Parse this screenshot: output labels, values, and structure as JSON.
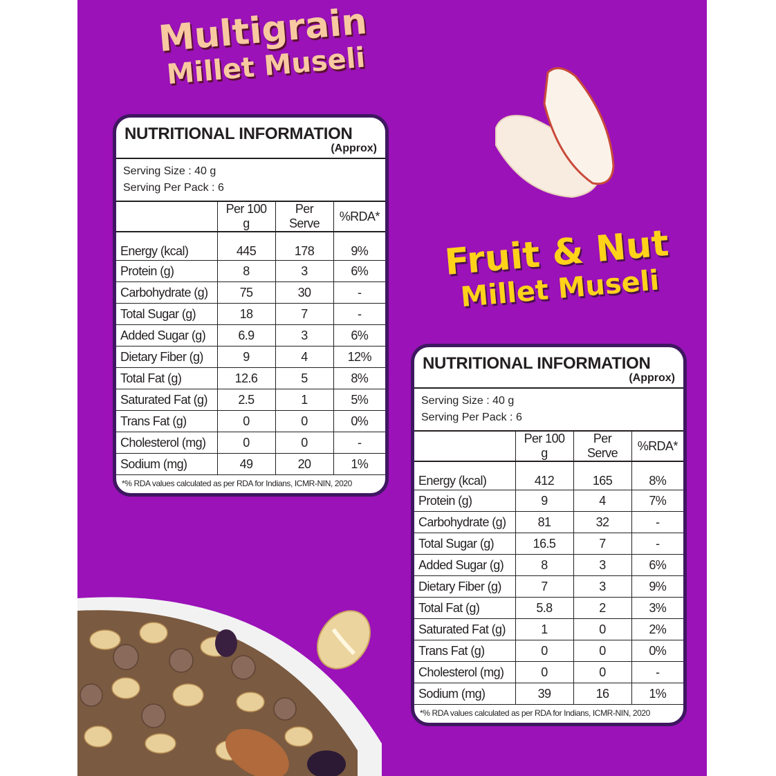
{
  "colors": {
    "background": "#9a12b8",
    "border": "#3e1760",
    "title1": "#f8c9a0",
    "title2": "#ffd21a"
  },
  "products": [
    {
      "title_line1": "Multigrain",
      "title_line2": "Millet Museli",
      "heading": "NUTRITIONAL INFORMATION",
      "approx": "(Approx)",
      "serving_size": "Serving Size : 40 g",
      "serving_per_pack": "Serving Per Pack : 6",
      "columns": [
        "",
        "Per 100 g",
        "Per Serve",
        "%RDA*"
      ],
      "rows": [
        [
          "Energy (kcal)",
          "445",
          "178",
          "9%"
        ],
        [
          "Protein (g)",
          "8",
          "3",
          "6%"
        ],
        [
          "Carbohydrate (g)",
          "75",
          "30",
          "-"
        ],
        [
          "Total Sugar (g)",
          "18",
          "7",
          "-"
        ],
        [
          "Added Sugar (g)",
          "6.9",
          "3",
          "6%"
        ],
        [
          "Dietary Fiber (g)",
          "9",
          "4",
          "12%"
        ],
        [
          "Total Fat (g)",
          "12.6",
          "5",
          "8%"
        ],
        [
          "Saturated Fat (g)",
          "2.5",
          "1",
          "5%"
        ],
        [
          "Trans Fat (g)",
          "0",
          "0",
          "0%"
        ],
        [
          "Cholesterol (mg)",
          "0",
          "0",
          "-"
        ],
        [
          "Sodium (mg)",
          "49",
          "20",
          "1%"
        ]
      ],
      "footnote": "*% RDA values calculated as per RDA for Indians, ICMR-NIN, 2020"
    },
    {
      "title_line1": "Fruit & Nut",
      "title_line2": "Millet Museli",
      "heading": "NUTRITIONAL INFORMATION",
      "approx": "(Approx)",
      "serving_size": "Serving Size : 40 g",
      "serving_per_pack": "Serving Per Pack : 6",
      "columns": [
        "",
        "Per 100 g",
        "Per Serve",
        "%RDA*"
      ],
      "rows": [
        [
          "Energy (kcal)",
          "412",
          "165",
          "8%"
        ],
        [
          "Protein (g)",
          "9",
          "4",
          "7%"
        ],
        [
          "Carbohydrate (g)",
          "81",
          "32",
          "-"
        ],
        [
          "Total Sugar (g)",
          "16.5",
          "7",
          "-"
        ],
        [
          "Added Sugar (g)",
          "8",
          "3",
          "6%"
        ],
        [
          "Dietary Fiber (g)",
          "7",
          "3",
          "9%"
        ],
        [
          "Total Fat (g)",
          "5.8",
          "2",
          "3%"
        ],
        [
          "Saturated Fat (g)",
          "1",
          "0",
          "2%"
        ],
        [
          "Trans Fat (g)",
          "0",
          "0",
          "0%"
        ],
        [
          "Cholesterol (mg)",
          "0",
          "0",
          "-"
        ],
        [
          "Sodium (mg)",
          "39",
          "16",
          "1%"
        ]
      ],
      "footnote": "*% RDA values calculated as per RDA for Indians, ICMR-NIN, 2020"
    }
  ]
}
